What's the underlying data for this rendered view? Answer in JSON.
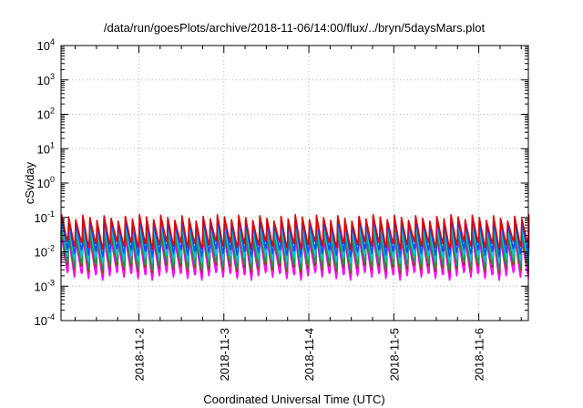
{
  "chart_data": {
    "type": "line",
    "title": "/data/run/goesPlots/archive/2018-11-06/14:00/flux/../bryn/5daysMars.plot",
    "xlabel": "Coordinated Universal Time (UTC)",
    "ylabel": "cSv/day",
    "yscale": "log",
    "ylim": [
      0.0001,
      10000
    ],
    "xlim": [
      "2018-11-01T02:00",
      "2018-11-06T14:00"
    ],
    "grid": true,
    "y_ticks": [
      {
        "base": "10",
        "exp": "-4"
      },
      {
        "base": "10",
        "exp": "-3"
      },
      {
        "base": "10",
        "exp": "-2"
      },
      {
        "base": "10",
        "exp": "-1"
      },
      {
        "base": "10",
        "exp": "0"
      },
      {
        "base": "10",
        "exp": "1"
      },
      {
        "base": "10",
        "exp": "2"
      },
      {
        "base": "10",
        "exp": "3"
      },
      {
        "base": "10",
        "exp": "4"
      }
    ],
    "x_ticks": [
      "2018-11-2",
      "2018-11-3",
      "2018-11-4",
      "2018-11-5",
      "2018-11-6"
    ],
    "x_tick_dates": [
      "2018-11-02T00:00",
      "2018-11-03T00:00",
      "2018-11-04T00:00",
      "2018-11-05T00:00",
      "2018-11-06T00:00"
    ],
    "orbit_period_hours": 2,
    "series": [
      {
        "color": "#e00000",
        "peak": 0.12,
        "trough": 0.02
      },
      {
        "color": "#0050ff",
        "peak": 0.1,
        "trough": 0.012
      },
      {
        "color": "#00c8d8",
        "peak": 0.07,
        "trough": 0.008
      },
      {
        "color": "#1a9850",
        "peak": 0.05,
        "trough": 0.005
      },
      {
        "color": "#8b4513",
        "peak": 0.04,
        "trough": 0.004
      },
      {
        "color": "#ff00ff",
        "peak": 0.03,
        "trough": 0.0025
      }
    ]
  }
}
